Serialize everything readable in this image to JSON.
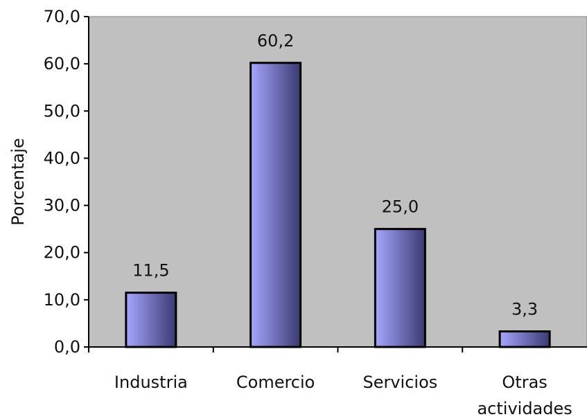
{
  "chart_data": {
    "type": "bar",
    "categories": [
      "Industria",
      "Comercio",
      "Servicios",
      "Otras actividades"
    ],
    "category_lines": [
      [
        "Industria"
      ],
      [
        "Comercio"
      ],
      [
        "Servicios"
      ],
      [
        "Otras",
        "actividades"
      ]
    ],
    "values": [
      11.5,
      60.2,
      25.0,
      3.3
    ],
    "value_labels": [
      "11,5",
      "60,2",
      "25,0",
      "3,3"
    ],
    "ylabel": "Porcentaje",
    "xlabel": "",
    "title": "",
    "ylim": [
      0,
      70
    ],
    "y_ticks": [
      0,
      10,
      20,
      30,
      40,
      50,
      60,
      70
    ],
    "y_tick_labels": [
      "0,0",
      "10,0",
      "20,0",
      "30,0",
      "40,0",
      "50,0",
      "60,0",
      "70,0"
    ],
    "grid": false,
    "legend": "none",
    "colors": {
      "plot_background": "#c0c0c0",
      "bar_light": "#a6a6ff",
      "bar_dark": "#3a3a72",
      "bar_outline": "#000000",
      "axis": "#000000"
    }
  }
}
